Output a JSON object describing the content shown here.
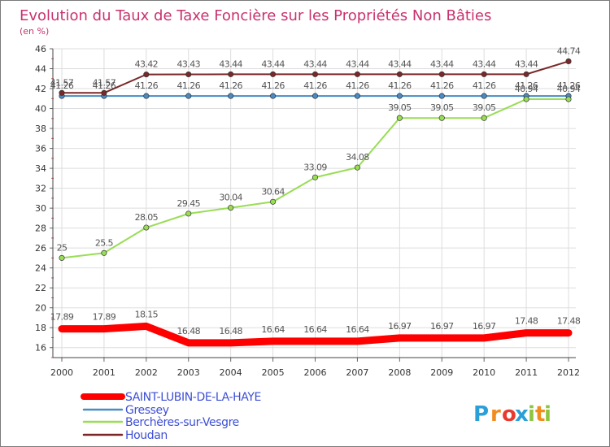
{
  "chart_data": {
    "type": "line",
    "title": "Evolution du Taux de Taxe Foncière sur les Propriétés Non Bâties",
    "unit_label": "(en %)",
    "x": [
      "2000",
      "2001",
      "2002",
      "2003",
      "2004",
      "2005",
      "2006",
      "2007",
      "2008",
      "2009",
      "2010",
      "2011",
      "2012"
    ],
    "ylim": [
      15,
      46
    ],
    "yticks": [
      16,
      18,
      20,
      22,
      24,
      26,
      28,
      30,
      32,
      34,
      36,
      38,
      40,
      42,
      44,
      46
    ],
    "grid": true,
    "legend_position": "bottom-left",
    "series": [
      {
        "name": "SAINT-LUBIN-DE-LA-HAYE",
        "color": "#ff0000",
        "values": [
          17.89,
          17.89,
          18.15,
          16.48,
          16.48,
          16.64,
          16.64,
          16.64,
          16.97,
          16.97,
          16.97,
          17.48,
          17.48
        ],
        "labels": [
          "17.89",
          "17.89",
          "18.15",
          "16.48",
          "16.48",
          "16.64",
          "16.64",
          "16.64",
          "16.97",
          "16.97",
          "16.97",
          "17.48",
          "17.48"
        ]
      },
      {
        "name": "Gressey",
        "color": "#4a8bc4",
        "values": [
          41.26,
          41.26,
          41.26,
          41.26,
          41.26,
          41.26,
          41.26,
          41.26,
          41.26,
          41.26,
          41.26,
          41.26,
          41.26
        ],
        "labels": [
          "41.26",
          "41.26",
          "41.26",
          "41.26",
          "41.26",
          "41.26",
          "41.26",
          "41.26",
          "41.26",
          "41.26",
          "41.26",
          "41.26",
          "41.26"
        ]
      },
      {
        "name": "Berchères-sur-Vesgre",
        "color": "#99dd55",
        "values": [
          25,
          25.5,
          28.05,
          29.45,
          30.04,
          30.64,
          33.09,
          34.08,
          39.05,
          39.05,
          39.05,
          40.94,
          40.94
        ],
        "labels": [
          "25",
          "25.5",
          "28.05",
          "29.45",
          "30.04",
          "30.64",
          "33.09",
          "34.08",
          "39.05",
          "39.05",
          "39.05",
          "40.94",
          "40.94"
        ]
      },
      {
        "name": "Houdan",
        "color": "#7a2828",
        "values": [
          41.57,
          41.57,
          43.42,
          43.43,
          43.44,
          43.44,
          43.44,
          43.44,
          43.44,
          43.44,
          43.44,
          43.44,
          44.74
        ],
        "labels": [
          "41.57",
          "41.57",
          "43.42",
          "43.43",
          "43.44",
          "43.44",
          "43.44",
          "43.44",
          "43.44",
          "43.44",
          "43.44",
          "43.44",
          "44.74"
        ]
      }
    ]
  },
  "logo": {
    "text": "Proxiti",
    "letters": [
      "P",
      "r",
      "o",
      "x",
      "i",
      "t",
      "i"
    ],
    "colors": [
      "#2a9fd8",
      "#f28c1e",
      "#e83a2e",
      "#2a9fd8",
      "#8cc63f",
      "#f28c1e",
      "#8cc63f"
    ]
  }
}
